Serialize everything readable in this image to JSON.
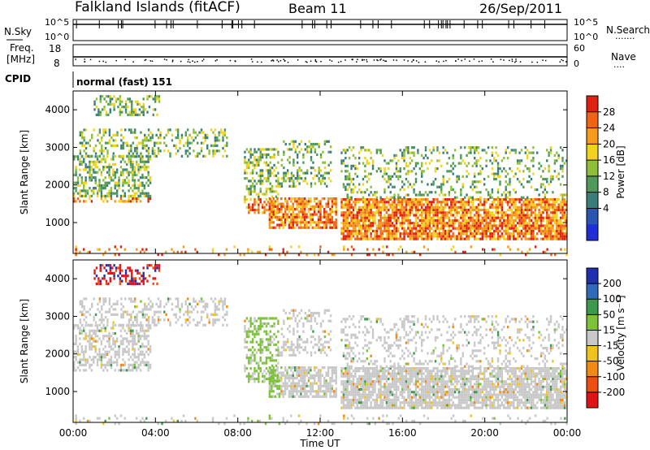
{
  "header": {
    "title": "Falkland Islands (fitACF)",
    "beam": "Beam 11",
    "date": "26/Sep/2011"
  },
  "panels": {
    "nsky": {
      "label": "N.Sky",
      "ticks": [
        "10^5",
        "10^0"
      ],
      "right_label": "N.Search",
      "right_ticks": [
        "10^5",
        "10^0"
      ]
    },
    "freq": {
      "label_line1": "Freq.",
      "label_line2": "[MHz]",
      "ticks": [
        "18",
        "8"
      ],
      "right_label": "Nave",
      "right_ticks": [
        "60",
        "0"
      ]
    },
    "cpid": {
      "label": "CPID",
      "mode_text": "normal (fast) 151"
    }
  },
  "chart_data": [
    {
      "type": "heatmap",
      "name": "power",
      "xlabel": "",
      "ylabel": "Slant Range [km]",
      "xlim": [
        0,
        24
      ],
      "ylim": [
        180,
        4500
      ],
      "yticks": [
        1000,
        2000,
        3000,
        4000
      ],
      "colorbar": {
        "label": "Power [dB]",
        "ticks": [
          "4",
          "8",
          "12",
          "16",
          "20",
          "24",
          "28"
        ],
        "colors": [
          "#1f2fd8",
          "#2a55b0",
          "#3a7e7a",
          "#4f9a5a",
          "#8fbf3a",
          "#f2d21c",
          "#f59a1a",
          "#f06414",
          "#e02010"
        ]
      }
    },
    {
      "type": "heatmap",
      "name": "velocity",
      "xlabel": "Time UT",
      "ylabel": "Slant Range [km]",
      "xlim": [
        0,
        24
      ],
      "ylim": [
        180,
        4500
      ],
      "yticks": [
        1000,
        2000,
        3000,
        4000
      ],
      "xticks": [
        "00:00",
        "04:00",
        "08:00",
        "12:00",
        "16:00",
        "20:00",
        "00:00"
      ],
      "colorbar": {
        "label": "Velocity [m s⁻¹]",
        "ticks": [
          "200",
          "100",
          "50",
          "15",
          "-15",
          "-50",
          "-100",
          "-200"
        ],
        "colors": [
          "#1f2fb0",
          "#2f6bb8",
          "#3c9a4c",
          "#7dc23a",
          "#c8c8c8",
          "#f2c21c",
          "#f08a14",
          "#ec4f10",
          "#e01414"
        ]
      }
    }
  ]
}
